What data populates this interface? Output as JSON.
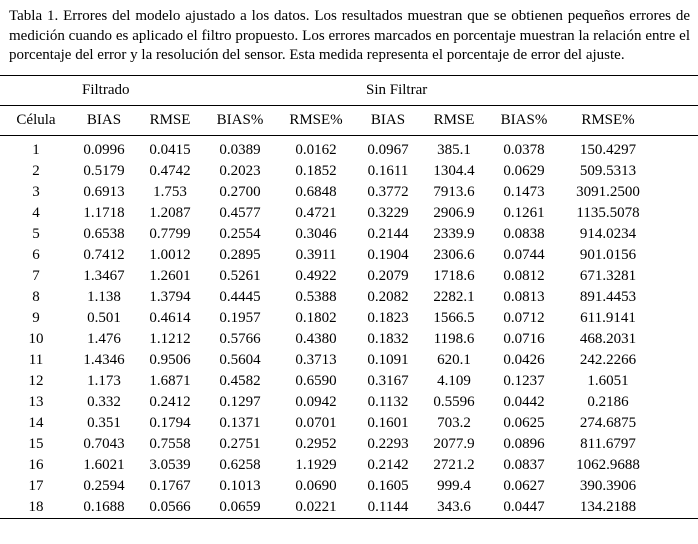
{
  "caption": "Tabla 1. Errores del modelo ajustado a los datos. Los resultados muestran que se obtienen pequeños errores de medición cuando es aplicado el filtro propuesto. Los errores marcados en porcentaje muestran la relación entre el porcentaje del error y la resolución del sensor. Esta medida representa el porcentaje de error del ajuste.",
  "table": {
    "group_headers": [
      "Filtrado",
      "Sin Filtrar"
    ],
    "columns": [
      "Célula",
      "BIAS",
      "RMSE",
      "BIAS%",
      "RMSE%",
      "BIAS",
      "RMSE",
      "BIAS%",
      "RMSE%"
    ],
    "rows": [
      [
        "1",
        "0.0996",
        "0.0415",
        "0.0389",
        "0.0162",
        "0.0967",
        "385.1",
        "0.0378",
        "150.4297"
      ],
      [
        "2",
        "0.5179",
        "0.4742",
        "0.2023",
        "0.1852",
        "0.1611",
        "1304.4",
        "0.0629",
        "509.5313"
      ],
      [
        "3",
        "0.6913",
        "1.753",
        "0.2700",
        "0.6848",
        "0.3772",
        "7913.6",
        "0.1473",
        "3091.2500"
      ],
      [
        "4",
        "1.1718",
        "1.2087",
        "0.4577",
        "0.4721",
        "0.3229",
        "2906.9",
        "0.1261",
        "1135.5078"
      ],
      [
        "5",
        "0.6538",
        "0.7799",
        "0.2554",
        "0.3046",
        "0.2144",
        "2339.9",
        "0.0838",
        "914.0234"
      ],
      [
        "6",
        "0.7412",
        "1.0012",
        "0.2895",
        "0.3911",
        "0.1904",
        "2306.6",
        "0.0744",
        "901.0156"
      ],
      [
        "7",
        "1.3467",
        "1.2601",
        "0.5261",
        "0.4922",
        "0.2079",
        "1718.6",
        "0.0812",
        "671.3281"
      ],
      [
        "8",
        "1.138",
        "1.3794",
        "0.4445",
        "0.5388",
        "0.2082",
        "2282.1",
        "0.0813",
        "891.4453"
      ],
      [
        "9",
        "0.501",
        "0.4614",
        "0.1957",
        "0.1802",
        "0.1823",
        "1566.5",
        "0.0712",
        "611.9141"
      ],
      [
        "10",
        "1.476",
        "1.1212",
        "0.5766",
        "0.4380",
        "0.1832",
        "1198.6",
        "0.0716",
        "468.2031"
      ],
      [
        "11",
        "1.4346",
        "0.9506",
        "0.5604",
        "0.3713",
        "0.1091",
        "620.1",
        "0.0426",
        "242.2266"
      ],
      [
        "12",
        "1.173",
        "1.6871",
        "0.4582",
        "0.6590",
        "0.3167",
        "4.109",
        "0.1237",
        "1.6051"
      ],
      [
        "13",
        "0.332",
        "0.2412",
        "0.1297",
        "0.0942",
        "0.1132",
        "0.5596",
        "0.0442",
        "0.2186"
      ],
      [
        "14",
        "0.351",
        "0.1794",
        "0.1371",
        "0.0701",
        "0.1601",
        "703.2",
        "0.0625",
        "274.6875"
      ],
      [
        "15",
        "0.7043",
        "0.7558",
        "0.2751",
        "0.2952",
        "0.2293",
        "2077.9",
        "0.0896",
        "811.6797"
      ],
      [
        "16",
        "1.6021",
        "3.0539",
        "0.6258",
        "1.1929",
        "0.2142",
        "2721.2",
        "0.0837",
        "1062.9688"
      ],
      [
        "17",
        "0.2594",
        "0.1767",
        "0.1013",
        "0.0690",
        "0.1605",
        "999.4",
        "0.0627",
        "390.3906"
      ],
      [
        "18",
        "0.1688",
        "0.0566",
        "0.0659",
        "0.0221",
        "0.1144",
        "343.6",
        "0.0447",
        "134.2188"
      ]
    ]
  }
}
